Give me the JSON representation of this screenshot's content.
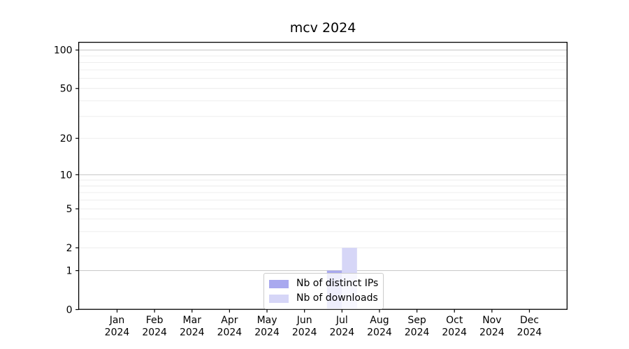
{
  "chart_data": {
    "type": "bar",
    "title": "mcv 2024",
    "categories": [
      {
        "month": "Jan",
        "year": "2024"
      },
      {
        "month": "Feb",
        "year": "2024"
      },
      {
        "month": "Mar",
        "year": "2024"
      },
      {
        "month": "Apr",
        "year": "2024"
      },
      {
        "month": "May",
        "year": "2024"
      },
      {
        "month": "Jun",
        "year": "2024"
      },
      {
        "month": "Jul",
        "year": "2024"
      },
      {
        "month": "Aug",
        "year": "2024"
      },
      {
        "month": "Sep",
        "year": "2024"
      },
      {
        "month": "Oct",
        "year": "2024"
      },
      {
        "month": "Nov",
        "year": "2024"
      },
      {
        "month": "Dec",
        "year": "2024"
      }
    ],
    "series": [
      {
        "name": "Nb of distinct IPs",
        "color": "#a9a9ef",
        "values": [
          0,
          0,
          0,
          0,
          0,
          0,
          1,
          0,
          0,
          0,
          0,
          0
        ]
      },
      {
        "name": "Nb of downloads",
        "color": "#d6d6f7",
        "values": [
          0,
          0,
          0,
          0,
          0,
          0,
          2,
          0,
          0,
          0,
          0,
          0
        ]
      }
    ],
    "y_axis": {
      "scale": "log1p",
      "tick_values": [
        0,
        1,
        2,
        5,
        10,
        20,
        50,
        100
      ],
      "major_gridlines": [
        1,
        10,
        100
      ],
      "minor_gridlines": [
        2,
        3,
        4,
        5,
        6,
        7,
        8,
        9,
        20,
        30,
        40,
        50,
        60,
        70,
        80,
        90
      ],
      "range_top_value": 115
    },
    "legend": {
      "location": "lower center"
    },
    "grid": true,
    "colors": {
      "background": "#ffffff",
      "axis": "#000000",
      "text": "#000000",
      "grid_major": "#c4c4c4",
      "grid_minor": "#ebebeb",
      "legend_border": "#cccccc",
      "legend_background": "rgba(255,255,255,0.8)"
    }
  }
}
